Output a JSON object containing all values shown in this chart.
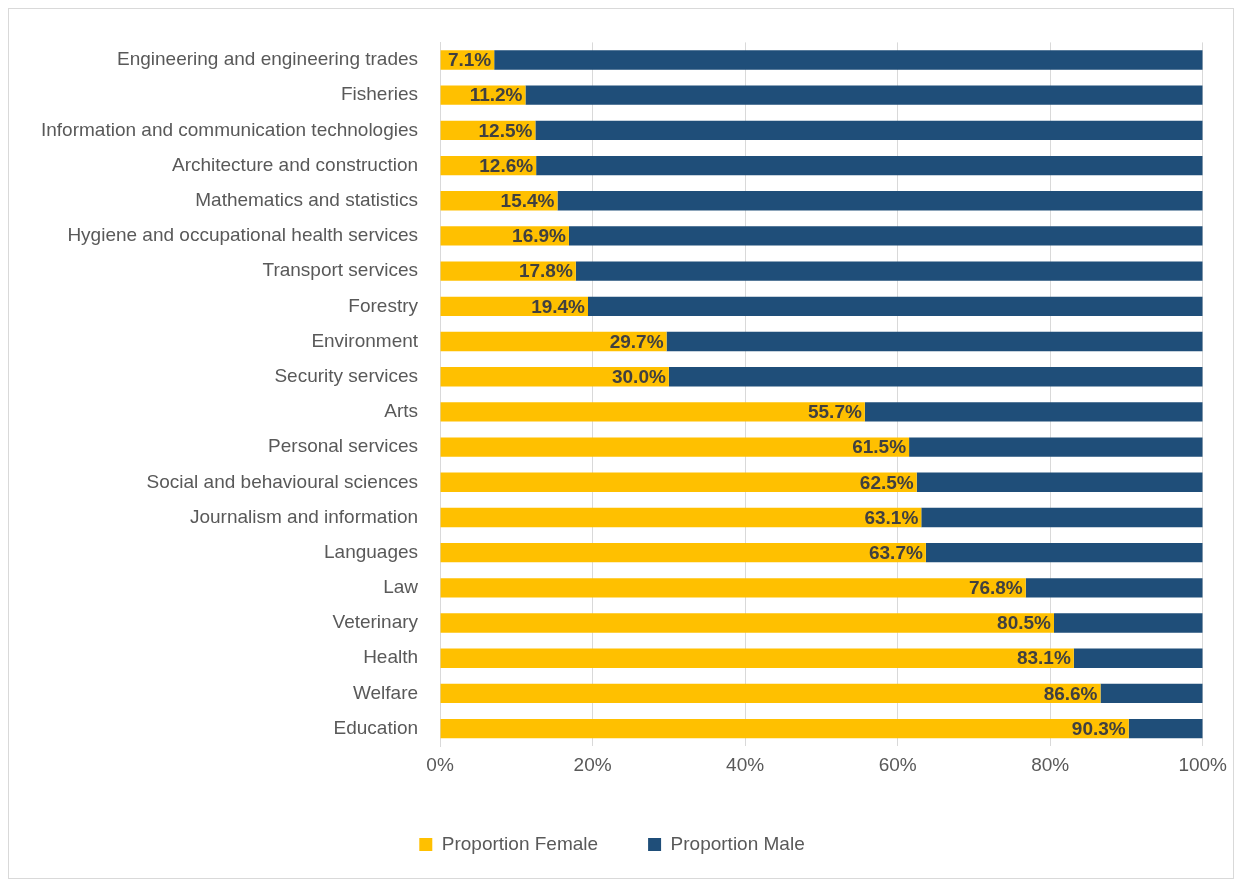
{
  "chart_data": {
    "type": "bar",
    "orientation": "horizontal",
    "stacked": true,
    "categories": [
      "Engineering and engineering trades",
      "Fisheries",
      "Information and communication technologies",
      "Architecture and construction",
      "Mathematics and statistics",
      "Hygiene and occupational health services",
      "Transport services",
      "Forestry",
      "Environment",
      "Security services",
      "Arts",
      "Personal services",
      "Social and behavioural sciences",
      "Journalism and information",
      "Languages",
      "Law",
      "Veterinary",
      "Health",
      "Welfare",
      "Education"
    ],
    "series": [
      {
        "name": "Proportion Female",
        "color": "#ffc000",
        "values": [
          7.1,
          11.2,
          12.5,
          12.6,
          15.4,
          16.9,
          17.8,
          19.4,
          29.7,
          30.0,
          55.7,
          61.5,
          62.5,
          63.1,
          63.7,
          76.8,
          80.5,
          83.1,
          86.6,
          90.3
        ],
        "value_labels": [
          "7.1%",
          "11.2%",
          "12.5%",
          "12.6%",
          "15.4%",
          "16.9%",
          "17.8%",
          "19.4%",
          "29.7%",
          "30.0%",
          "55.7%",
          "61.5%",
          "62.5%",
          "63.1%",
          "63.7%",
          "76.8%",
          "80.5%",
          "83.1%",
          "86.6%",
          "90.3%"
        ]
      },
      {
        "name": "Proportion Male",
        "color": "#1f4e79",
        "values": [
          92.9,
          88.8,
          87.5,
          87.4,
          84.6,
          83.1,
          82.2,
          80.6,
          70.3,
          70.0,
          44.3,
          38.5,
          37.5,
          36.9,
          36.3,
          23.2,
          19.5,
          16.9,
          13.4,
          9.7
        ]
      }
    ],
    "xlim": [
      0,
      100
    ],
    "xticks": [
      {
        "value": 0,
        "label": "0%"
      },
      {
        "value": 20,
        "label": "20%"
      },
      {
        "value": 40,
        "label": "40%"
      },
      {
        "value": 60,
        "label": "60%"
      },
      {
        "value": 80,
        "label": "80%"
      },
      {
        "value": 100,
        "label": "100%"
      }
    ],
    "grid": "x",
    "legend": "bottom"
  }
}
